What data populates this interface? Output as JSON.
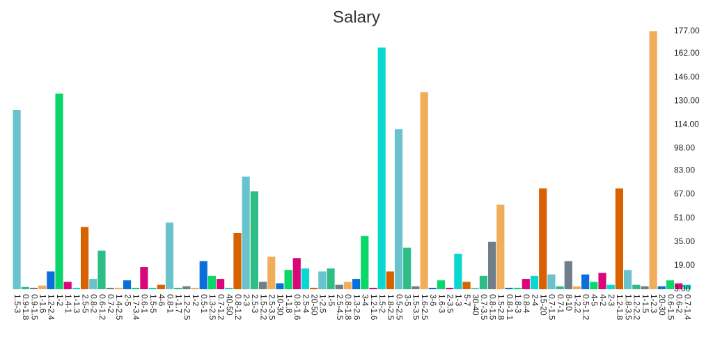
{
  "chart_data": {
    "type": "bar",
    "title": "Salary",
    "categories": [
      "1.5-3",
      "0.9-1.8",
      "0.9-1.5",
      "1-1.6",
      "1.2-2.4",
      "1-2",
      "1.4-1",
      "1-1.3",
      "2.5-5",
      "0.8-2",
      "0.6-1.2",
      "0.7-2",
      "1.4-2.5",
      "2-5",
      "1.7-3.4",
      "0.6-1",
      "1.5-5",
      "4-6",
      "0.8-1",
      "1-1.7",
      "1.2-2.5",
      "1-2",
      "0.5-1",
      "1.3-2.5",
      "0.7-1.2",
      "40-50",
      "0.8-1.2",
      "2-3",
      "2.5-3",
      "1.5-2.2",
      "2.5-3.5",
      "10-30",
      "1-1.8",
      "0.8-1.6",
      "2.5-4",
      "20-50",
      "1-2.5",
      "1-5",
      "2.5-4.5",
      "0.8-1.8",
      "1.3-2.6",
      "3-4",
      "1.2-1.6",
      "1.5-2",
      "1.8-2.5",
      "0.5-2.5",
      "3-5",
      "1.5-3.5",
      "1.6-2.5",
      "3-6",
      "1.6-3",
      "2-3.5",
      "1-3",
      "5-7",
      "30-40",
      "0.7-3.5",
      "0.8-1.5",
      "1.5-2.8",
      "0.8-1.1",
      "1.8-3",
      "0.8-4",
      "2-4",
      "15-20",
      "0.7-1.5",
      "0.7-1",
      "8-10",
      "1-2.2",
      "0.5-1.2",
      "4-5",
      "4-2",
      "2-3",
      "1.2-1.8",
      "1.8-3.5",
      "1.2-2.2",
      "1-1.5",
      "1-2.3",
      "20-30",
      "0.6-1.5",
      "0.6-2",
      "0.7-1.4"
    ],
    "values": [
      124,
      4.5,
      4,
      5.5,
      15,
      135,
      8,
      4,
      45,
      10,
      29,
      4,
      4,
      9,
      4,
      18,
      4,
      6,
      48,
      4,
      5,
      4,
      22,
      12,
      10,
      4,
      41,
      79,
      69,
      8,
      25,
      7,
      16,
      24,
      17,
      4,
      15,
      17,
      6,
      8,
      10,
      39,
      4,
      166,
      15,
      111,
      31,
      5,
      136,
      4,
      9,
      4,
      27,
      8,
      4,
      12,
      35,
      60,
      4,
      4,
      10,
      12,
      71,
      13,
      5,
      22,
      5,
      13,
      8,
      14,
      6,
      71,
      16,
      6,
      5,
      177,
      5,
      9,
      7,
      6
    ],
    "colors": [
      "#6ac3cc",
      "#2dbd85",
      "#6e7f8a",
      "#f0ad5a",
      "#0a6fd8",
      "#0bd66a",
      "#d9087a",
      "#0ad8d0",
      "#d96200"
    ],
    "ylim": [
      3,
      177
    ],
    "yticks": [
      {
        "value": 3,
        "label": "3.00"
      },
      {
        "value": 19,
        "label": "19.00"
      },
      {
        "value": 35,
        "label": "35.00"
      },
      {
        "value": 51,
        "label": "51.00"
      },
      {
        "value": 67,
        "label": "67.00"
      },
      {
        "value": 83,
        "label": "83.00"
      },
      {
        "value": 98,
        "label": "98.00"
      },
      {
        "value": 114,
        "label": "114.00"
      },
      {
        "value": 130,
        "label": "130.00"
      },
      {
        "value": 146,
        "label": "146.00"
      },
      {
        "value": 162,
        "label": "162.00"
      },
      {
        "value": 177,
        "label": "177.00"
      }
    ],
    "grid": false
  }
}
